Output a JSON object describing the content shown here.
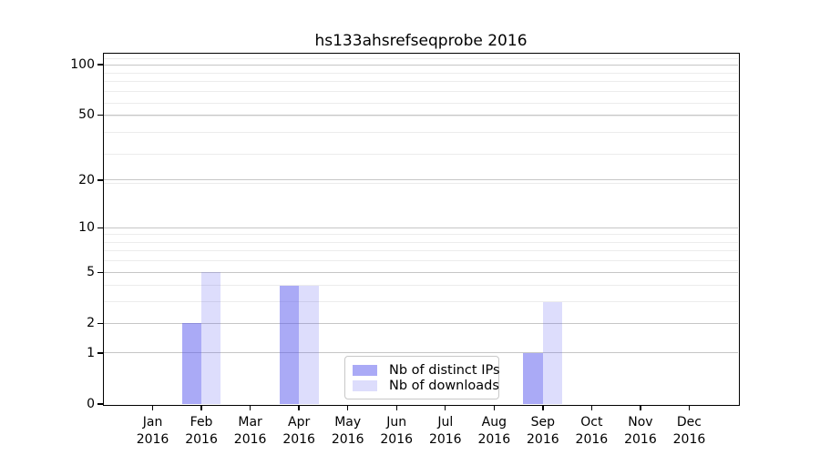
{
  "chart_data": {
    "type": "bar",
    "title": "hs133ahsrefseqprobe 2016",
    "x": {
      "categories": [
        "Jan",
        "Feb",
        "Mar",
        "Apr",
        "May",
        "Jun",
        "Jul",
        "Aug",
        "Sep",
        "Oct",
        "Nov",
        "Dec"
      ],
      "year_label": "2016"
    },
    "series": [
      {
        "name": "Nb of distinct IPs",
        "color": "rgba(85,85,238,0.5)",
        "color_hex": "#aaaaf6",
        "values": [
          0,
          2,
          0,
          4,
          0,
          0,
          0,
          0,
          1,
          0,
          0,
          0
        ]
      },
      {
        "name": "Nb of downloads",
        "color": "rgba(85,85,238,0.2)",
        "color_hex": "#ddddfc",
        "values": [
          0,
          5,
          0,
          4,
          0,
          0,
          0,
          0,
          3,
          0,
          0,
          0
        ]
      }
    ],
    "y_axis": {
      "scale": "log1p",
      "major_ticks": [
        0,
        1,
        2,
        5,
        10,
        20,
        50,
        100
      ],
      "minor_gridlines": [
        3,
        4,
        6,
        7,
        8,
        9,
        19,
        29,
        39,
        49,
        59,
        69,
        79,
        89,
        99,
        109
      ],
      "max": 115.5
    },
    "grid": {
      "major_color": "#c6c6c6",
      "minor_color": "#ececec"
    },
    "axis_color": "#000000",
    "legend_position": "lower-center"
  }
}
